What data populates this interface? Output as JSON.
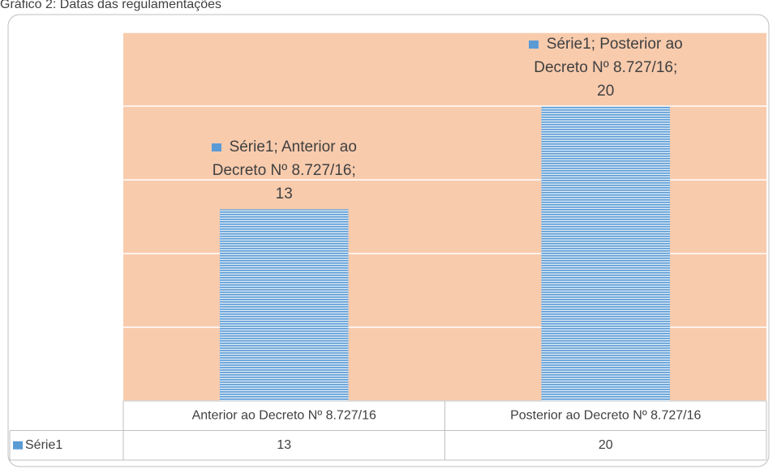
{
  "chart_data": {
    "type": "bar",
    "title": "Gráfico 2: Datas das regulamentações",
    "categories": [
      "Anterior ao Decreto  Nº 8.727/16",
      "Posterior ao Decreto  Nº 8.727/16"
    ],
    "series": [
      {
        "name": "Série1",
        "color": "#5b9bd5",
        "values": [
          13,
          20
        ],
        "value_labels": [
          "Série1; Anterior ao Decreto  Nº 8.727/16; 13",
          "Série1; Posterior ao Decreto  Nº 8.727/16; 20"
        ]
      }
    ],
    "ylim": [
      0,
      25
    ],
    "yticks": [
      0,
      5,
      10,
      15,
      20,
      25
    ],
    "grid": true,
    "plot_background": "#f8cbad"
  }
}
